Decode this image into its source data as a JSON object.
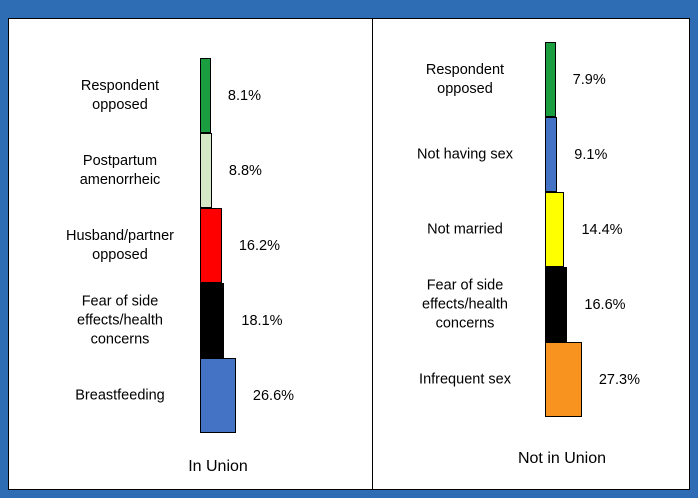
{
  "chart_data": [
    {
      "type": "bar",
      "title": "In Union",
      "categories": [
        "Respondent opposed",
        "Postpartum amenorrheic",
        "Husband/partner opposed",
        "Fear of side effects/health concerns",
        "Breastfeeding"
      ],
      "values": [
        8.1,
        8.8,
        16.2,
        18.1,
        26.6
      ],
      "value_labels": [
        "8.1%",
        "8.8%",
        "16.2%",
        "18.1%",
        "26.6%"
      ],
      "colors": [
        "#1a9e3f",
        "#d6e9c6",
        "#ff0000",
        "#000000",
        "#4472c4"
      ]
    },
    {
      "type": "bar",
      "title": "Not in Union",
      "categories": [
        "Respondent opposed",
        "Not having sex",
        "Not married",
        "Fear of side effects/health concerns",
        "Infrequent sex"
      ],
      "values": [
        7.9,
        9.1,
        14.4,
        16.6,
        27.3
      ],
      "value_labels": [
        "7.9%",
        "9.1%",
        "14.4%",
        "16.6%",
        "27.3%"
      ],
      "colors": [
        "#1a9e3f",
        "#4472c4",
        "#ffff00",
        "#000000",
        "#f7931e"
      ]
    }
  ]
}
